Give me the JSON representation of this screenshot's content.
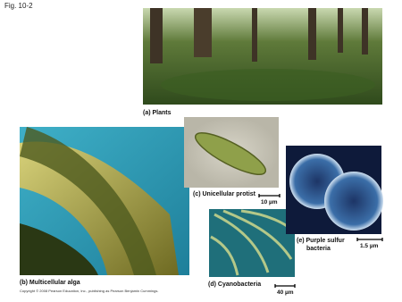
{
  "figure_label": "Fig. 10-2",
  "panels": [
    {
      "label": "(a) Plants"
    },
    {
      "label": "(b) Multicellular alga"
    },
    {
      "label": "(c) Unicellular protist",
      "scale": "10 µm"
    },
    {
      "label": "(d) Cyanobacteria",
      "scale": "40 µm"
    },
    {
      "label_lines": [
        "(e) Purple sulfur",
        "bacteria"
      ],
      "scale": "1.5 µm"
    }
  ],
  "copyright": "Copyright © 2008 Pearson Education, Inc., publishing as Pearson Benjamin Cummings."
}
